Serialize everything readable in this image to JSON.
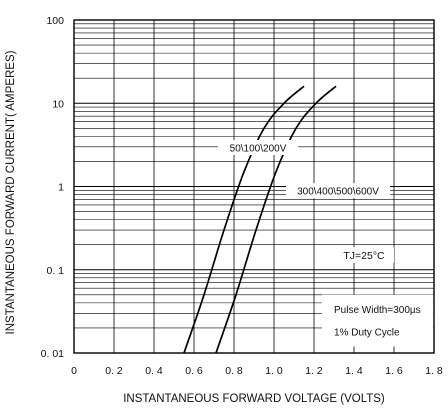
{
  "chart_data": {
    "type": "line",
    "xlabel": "INSTANTANEOUS FORWARD VOLTAGE (VOLTS)",
    "ylabel": "INSTANTANEOUS FORWARD CURRENT( AMPERES)",
    "x_scale": "linear",
    "y_scale": "log",
    "xlim": [
      0,
      1.8
    ],
    "ylim": [
      0.01,
      100
    ],
    "x_ticks": [
      "0",
      "0. 2",
      "0. 4",
      "0. 6",
      "0. 8",
      "1. 0",
      "1. 2",
      "1. 4",
      "1. 6",
      "1. 8"
    ],
    "x_tick_values": [
      0,
      0.2,
      0.4,
      0.6,
      0.8,
      1.0,
      1.2,
      1.4,
      1.6,
      1.8
    ],
    "y_ticks": [
      "0. 01",
      "0. 1",
      "1",
      "10",
      "100"
    ],
    "y_tick_values": [
      0.01,
      0.1,
      1,
      10,
      100
    ],
    "grid": true,
    "series": [
      {
        "name": "50\\100\\200V",
        "x": [
          0.55,
          0.65,
          0.75,
          0.85,
          0.95,
          1.05,
          1.15
        ],
        "y": [
          0.01,
          0.05,
          0.3,
          1.5,
          5,
          10,
          16
        ]
      },
      {
        "name": "300\\400\\500\\600V",
        "x": [
          0.71,
          0.81,
          0.91,
          1.01,
          1.11,
          1.21,
          1.31
        ],
        "y": [
          0.01,
          0.05,
          0.3,
          1.5,
          5,
          10,
          16
        ]
      }
    ],
    "annotations": [
      "TJ=25°C",
      "Pulse Width=300µs",
      "1% Duty Cycle"
    ]
  }
}
